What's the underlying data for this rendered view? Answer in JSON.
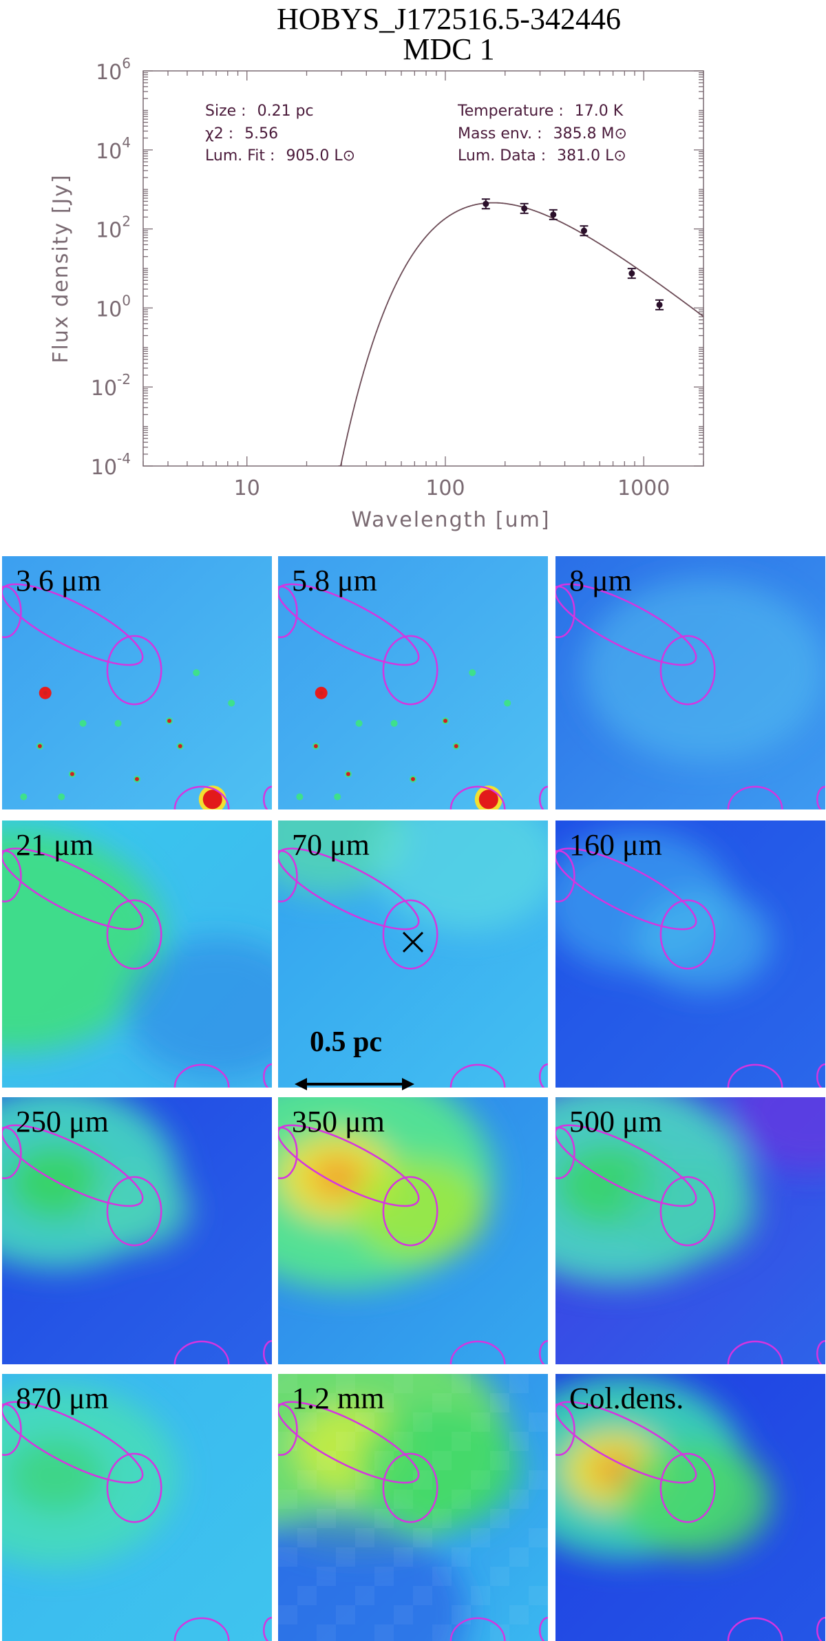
{
  "title": [
    "HOBYS_J172516.5-342446",
    "MDC 1"
  ],
  "chart_data": {
    "type": "scatter",
    "xlabel": "Wavelength [um]",
    "ylabel": "Flux density [Jy]",
    "x_scale": "log",
    "y_scale": "log",
    "xlim": [
      3,
      2000
    ],
    "ylim": [
      0.0001,
      1000000
    ],
    "x_ticks": [
      "10",
      "100",
      "1000"
    ],
    "y_ticks": [
      "10^-4",
      "10^-2",
      "10^0",
      "10^2",
      "10^4",
      "10^6"
    ],
    "points": [
      {
        "x": 160,
        "y": 430
      },
      {
        "x": 250,
        "y": 330
      },
      {
        "x": 350,
        "y": 230
      },
      {
        "x": 500,
        "y": 90
      },
      {
        "x": 870,
        "y": 7.5
      },
      {
        "x": 1200,
        "y": 1.2
      }
    ],
    "fit_curve": {
      "peak_x": 175,
      "peak_y": 460
    },
    "annotations": {
      "size": {
        "label": "Size :",
        "value": "0.21 pc"
      },
      "chi2": {
        "label": "χ2 :",
        "value": "5.56"
      },
      "lum_fit": {
        "label": "Lum. Fit :",
        "value": "905.0 L⊙"
      },
      "temperature": {
        "label": "Temperature :",
        "value": "17.0 K"
      },
      "mass_env": {
        "label": "Mass env. :",
        "value": "385.8 M⊙"
      },
      "lum_data": {
        "label": "Lum. Data :",
        "value": "381.0 L⊙"
      }
    }
  },
  "panels": [
    {
      "label": "3.6 μm",
      "theme": "irac"
    },
    {
      "label": "5.8 μm",
      "theme": "irac"
    },
    {
      "label": "8 μm",
      "theme": "blue8"
    },
    {
      "label": "21 μm",
      "theme": "green21"
    },
    {
      "label": "70 μm",
      "theme": "cyan70"
    },
    {
      "label": "160 μm",
      "theme": "blue160"
    },
    {
      "label": "250 μm",
      "theme": "sub250"
    },
    {
      "label": "350 μm",
      "theme": "sub350"
    },
    {
      "label": "500 μm",
      "theme": "sub500"
    },
    {
      "label": "870 μm",
      "theme": "sub870"
    },
    {
      "label": "1.2 mm",
      "theme": "mm12"
    },
    {
      "label": "Col.dens.",
      "theme": "coldens"
    }
  ],
  "scale_bar": {
    "label": "0.5 pc"
  },
  "colors": {
    "ellipse": "#d634e0",
    "curve": "#6b4a55",
    "points": "#2a0f2a",
    "annot": "#4a1a3a"
  }
}
